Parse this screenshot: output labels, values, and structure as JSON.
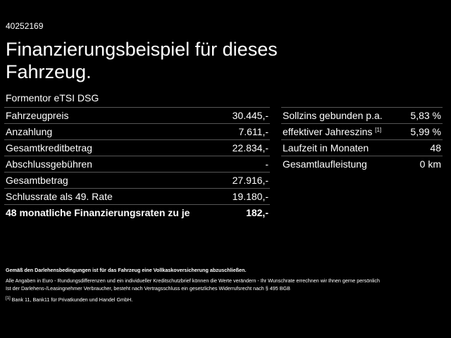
{
  "header": {
    "id": "40252169",
    "title_lines": [
      "Finanzierungsbeispiel für dieses",
      "Fahrzeug."
    ],
    "model": "Formentor eTSI DSG"
  },
  "left_table": {
    "rows": [
      [
        "Fahrzeugpreis",
        "30.445,-"
      ],
      [
        "Anzahlung",
        "7.611,-"
      ],
      [
        "Gesamtkreditbetrag",
        "22.834,-"
      ],
      [
        "Abschlussgebühren",
        "-"
      ],
      [
        "Gesamtbetrag",
        "27.916,-"
      ],
      [
        "Schlussrate als 49. Rate",
        "19.180,-"
      ],
      [
        "48 monatliche Finanzierungsraten zu je",
        "182,-"
      ]
    ]
  },
  "right_table": {
    "rows": [
      [
        "Sollzins gebunden p.a.",
        "5,83 %"
      ],
      [
        "effektiver Jahreszins",
        "5,99 %"
      ],
      [
        "Laufzeit in Monaten",
        "48"
      ],
      [
        "Gesamtlaufleistung",
        "0 km"
      ]
    ],
    "footnote_ref": "[1]"
  },
  "footer": {
    "notice": "Gemäß den Darlehensbedingungen ist für das Fahrzeug eine Vollkaskoversicherung abzuschließen.",
    "disclaimer_lines": [
      "Alle Angaben in Euro - Rundungsdifferenzen und ein individueller Kreditschutzbrief können die Werte verändern - Ihr Wunschrate errechnen wir Ihnen gerne persönlich",
      "Ist der Darlehens-/Leasingnehmer Verbraucher, besteht nach Vertragsschluss ein gesetzliches Widerrufsrecht nach § 495 BGB"
    ],
    "footnote_mark": "[1]",
    "footnote": "Bank 11, Bank11 für Privatkunden und Handel GmbH."
  }
}
